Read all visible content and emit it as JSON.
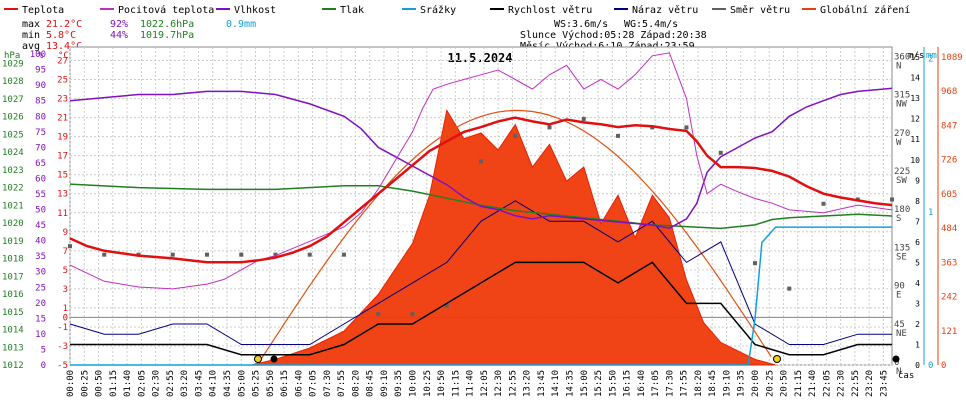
{
  "legend": [
    {
      "label": "Teplota",
      "color": "#e01010"
    },
    {
      "label": "Pocitová teplota",
      "color": "#c030c0"
    },
    {
      "label": "Vlhkost",
      "color": "#8010c0"
    },
    {
      "label": "Tlak",
      "color": "#208020"
    },
    {
      "label": "Srážky",
      "color": "#10a0e0"
    },
    {
      "label": "Rychlost větru",
      "color": "#000000"
    },
    {
      "label": "Náraz větru",
      "color": "#000080"
    },
    {
      "label": "Směr větru",
      "color": "#606060"
    },
    {
      "label": "Globální záření",
      "color": "#e84010"
    }
  ],
  "stats": {
    "max": {
      "label": "max",
      "temp": "21.2°C",
      "hum": "92%",
      "press": "1022.6hPa",
      "rain": "0.9mm"
    },
    "min": {
      "label": "min",
      "temp": "5.8°C",
      "hum": "44%",
      "press": "1019.7hPa"
    },
    "avg": {
      "label": "avg",
      "temp": "13.4°C"
    }
  },
  "info": {
    "ws": "WS:3.6m/s",
    "wg": "WG:5.4m/s",
    "sun": "Slunce Východ:05:28   Západ:20:38",
    "moon": "Měsíc  Východ:6:10    Západ:23:59"
  },
  "title": "11.5.2024",
  "xaxis_label": "čas",
  "axes": {
    "hpa": {
      "label": "hPa",
      "color": "#208020",
      "ticks": [
        "1012",
        "1013",
        "1014",
        "1015",
        "1016",
        "1017",
        "1018",
        "1019",
        "1020",
        "1021",
        "1022",
        "1023",
        "1024",
        "1025",
        "1026",
        "1027",
        "1028",
        "1029"
      ]
    },
    "pct": {
      "label": "%",
      "color": "#8010c0",
      "ticks": [
        "0",
        "5",
        "10",
        "15",
        "20",
        "25",
        "30",
        "35",
        "40",
        "45",
        "50",
        "55",
        "60",
        "65",
        "70",
        "75",
        "80",
        "85",
        "90",
        "95",
        "100"
      ]
    },
    "celsius": {
      "label": "°C",
      "color": "#e01010",
      "ticks": [
        "-5",
        "-3",
        "-1",
        "0",
        "1",
        "3",
        "5",
        "7",
        "9",
        "11",
        "13",
        "15",
        "17",
        "19",
        "21",
        "23",
        "25",
        "27"
      ]
    },
    "dir": {
      "ticks": [
        "0",
        "45",
        "90",
        "135",
        "180",
        "225",
        "270",
        "315",
        "360"
      ],
      "names": [
        "N",
        "NE",
        "E",
        "SE",
        "S",
        "SW",
        "W",
        "NW",
        "N"
      ]
    },
    "ms": {
      "label": "m/s",
      "ticks": [
        "0",
        "1",
        "2",
        "3",
        "4",
        "5",
        "6",
        "7",
        "8",
        "9",
        "10",
        "11",
        "12",
        "13",
        "14",
        "15"
      ]
    },
    "mm": {
      "label": "mm",
      "color": "#10a0e0",
      "ticks": [
        "0",
        "1",
        "2"
      ]
    },
    "wm2": {
      "label": "W/m²",
      "color": "#e84010",
      "ticks": [
        "0",
        "121",
        "242",
        "363",
        "484",
        "605",
        "726",
        "847",
        "968",
        "1089"
      ]
    }
  },
  "chart_data": {
    "type": "line",
    "title": "11.5.2024",
    "x_unit": "time of day (hours)",
    "x_ticks": [
      "00:00",
      "00:25",
      "00:50",
      "01:15",
      "01:40",
      "02:05",
      "02:30",
      "02:55",
      "03:20",
      "03:45",
      "04:10",
      "04:35",
      "05:00",
      "05:25",
      "05:50",
      "06:15",
      "06:40",
      "07:05",
      "07:30",
      "07:55",
      "08:20",
      "08:45",
      "09:10",
      "09:35",
      "10:00",
      "10:25",
      "10:50",
      "11:15",
      "11:40",
      "12:05",
      "12:30",
      "12:55",
      "13:20",
      "13:45",
      "14:10",
      "14:35",
      "15:00",
      "15:25",
      "15:50",
      "16:15",
      "16:40",
      "17:05",
      "17:30",
      "17:55",
      "18:20",
      "18:45",
      "19:10",
      "19:35",
      "20:00",
      "20:25",
      "20:50",
      "21:15",
      "21:40",
      "22:05",
      "22:30",
      "22:55",
      "23:20",
      "23:45"
    ],
    "series": [
      {
        "name": "Teplota",
        "unit": "°C",
        "x": [
          0,
          0.5,
          1,
          2,
          3,
          4,
          5,
          5.5,
          6,
          6.5,
          7,
          7.5,
          8,
          8.5,
          9,
          9.5,
          10,
          10.5,
          11,
          11.5,
          12,
          12.5,
          13,
          13.5,
          14,
          14.5,
          15,
          15.5,
          16,
          16.5,
          17,
          17.5,
          18,
          18.3,
          18.6,
          19,
          19.5,
          20,
          20.5,
          21,
          21.5,
          22,
          22.5,
          23,
          23.5,
          24
        ],
        "y": [
          8.3,
          7.5,
          7.0,
          6.5,
          6.2,
          5.8,
          5.8,
          6.0,
          6.3,
          6.8,
          7.5,
          8.5,
          10.0,
          11.5,
          13.0,
          14.5,
          16.0,
          17.5,
          18.5,
          19.5,
          20.0,
          20.6,
          21.0,
          20.6,
          20.3,
          20.8,
          20.5,
          20.3,
          20.0,
          20.2,
          20.1,
          19.8,
          19.6,
          18.5,
          17.0,
          15.8,
          15.8,
          15.7,
          15.4,
          14.8,
          13.8,
          13.0,
          12.6,
          12.3,
          12.0,
          11.8
        ]
      },
      {
        "name": "Pocitová teplota",
        "unit": "°C",
        "x": [
          0,
          1,
          2,
          3,
          4,
          4.5,
          5,
          5.5,
          6,
          7,
          8,
          8.5,
          9,
          9.5,
          10,
          10.3,
          10.6,
          11,
          11.5,
          12,
          12.5,
          13,
          13.5,
          14,
          14.5,
          15,
          15.5,
          16,
          16.5,
          17,
          17.5,
          18,
          18.3,
          18.6,
          19,
          19.5,
          20,
          20.5,
          21,
          22,
          23,
          24
        ],
        "y": [
          5.5,
          3.8,
          3.2,
          3.0,
          3.5,
          4.0,
          5.0,
          6.0,
          6.5,
          8.0,
          9.5,
          11.0,
          13.5,
          16.5,
          19.5,
          22.0,
          24.0,
          24.5,
          25.0,
          25.5,
          26.0,
          25.0,
          24.0,
          25.5,
          26.5,
          24.0,
          25.0,
          24.0,
          25.5,
          27.5,
          27.8,
          23.0,
          17.0,
          13.0,
          14.0,
          13.2,
          12.5,
          12.0,
          11.3,
          11.0,
          11.8,
          11.3
        ]
      },
      {
        "name": "Vlhkost",
        "unit": "%",
        "x": [
          0,
          1,
          2,
          3,
          4,
          5,
          6,
          7,
          8,
          8.5,
          9,
          9.5,
          10,
          10.5,
          11,
          11.5,
          12,
          12.5,
          13,
          13.5,
          14,
          15,
          16,
          17,
          17.5,
          18,
          18.3,
          18.6,
          19,
          19.5,
          20,
          20.5,
          21,
          21.5,
          22,
          22.5,
          23,
          24
        ],
        "y": [
          85,
          86,
          87,
          87,
          88,
          88,
          87,
          84,
          80,
          76,
          70,
          67,
          64,
          61,
          58,
          54,
          51,
          50,
          48,
          47,
          48,
          47,
          46,
          45,
          44,
          47,
          52,
          62,
          67,
          70,
          73,
          75,
          80,
          83,
          85,
          87,
          88,
          89
        ]
      },
      {
        "name": "Tlak",
        "unit": "hPa",
        "x": [
          0,
          2,
          4,
          6,
          8,
          9,
          10,
          11,
          12,
          13,
          14,
          15,
          16,
          17,
          18,
          19,
          20,
          20.5,
          21,
          22,
          23,
          24
        ],
        "y": [
          1022.2,
          1022.0,
          1021.9,
          1021.9,
          1022.1,
          1022.1,
          1021.8,
          1021.4,
          1021.0,
          1020.7,
          1020.5,
          1020.3,
          1020.1,
          1019.9,
          1019.8,
          1019.7,
          1019.9,
          1020.2,
          1020.3,
          1020.4,
          1020.5,
          1020.4
        ]
      },
      {
        "name": "Srážky",
        "unit": "mm",
        "x": [
          0,
          19.8,
          20.0,
          20.2,
          20.6,
          24
        ],
        "y": [
          0,
          0,
          0.3,
          0.8,
          0.9,
          0.9
        ]
      },
      {
        "name": "Rychlost větru",
        "unit": "m/s",
        "x": [
          0,
          1,
          2,
          3,
          4,
          5,
          6,
          7,
          8,
          9,
          10,
          11,
          12,
          13,
          14,
          15,
          16,
          17,
          18,
          19,
          20,
          21,
          22,
          23,
          24
        ],
        "y": [
          1,
          1,
          1,
          1,
          1,
          0.5,
          0.5,
          0.5,
          1,
          2,
          2,
          3,
          4,
          5,
          5,
          5,
          4,
          5,
          3,
          3,
          1,
          0.5,
          0.5,
          1,
          1
        ]
      },
      {
        "name": "Náraz větru",
        "unit": "m/s",
        "x": [
          0,
          1,
          2,
          3,
          4,
          5,
          6,
          7,
          8,
          9,
          10,
          11,
          12,
          13,
          14,
          15,
          16,
          17,
          18,
          19,
          20,
          21,
          22,
          23,
          24
        ],
        "y": [
          2,
          1.5,
          1.5,
          2,
          2,
          1,
          1,
          1,
          2,
          3,
          4,
          5,
          7,
          8,
          7,
          7,
          6,
          7,
          5,
          6,
          2,
          1,
          1,
          1.5,
          1.5
        ]
      },
      {
        "name": "Směr větru",
        "unit": "°",
        "x": [
          0,
          1,
          2,
          3,
          4,
          5,
          6,
          7,
          8,
          9,
          10,
          11,
          12,
          13,
          14,
          15,
          16,
          17,
          18,
          19,
          20,
          21,
          22,
          23,
          24
        ],
        "y": [
          140,
          130,
          130,
          130,
          130,
          130,
          130,
          130,
          130,
          60,
          60,
          70,
          240,
          270,
          280,
          290,
          270,
          280,
          280,
          250,
          120,
          90,
          190,
          195,
          195
        ]
      },
      {
        "name": "Globální záření",
        "unit": "W/m²",
        "x": [
          5.3,
          6,
          7,
          8,
          9,
          10,
          10.5,
          11,
          11.5,
          12,
          12.5,
          13,
          13.5,
          14,
          14.5,
          15,
          15.5,
          16,
          16.5,
          17,
          17.5,
          18,
          18.5,
          19,
          19.5,
          20,
          20.6
        ],
        "y": [
          0,
          20,
          60,
          120,
          250,
          430,
          600,
          900,
          800,
          820,
          760,
          850,
          700,
          780,
          650,
          700,
          500,
          600,
          450,
          600,
          520,
          300,
          150,
          80,
          50,
          20,
          0
        ]
      }
    ]
  }
}
